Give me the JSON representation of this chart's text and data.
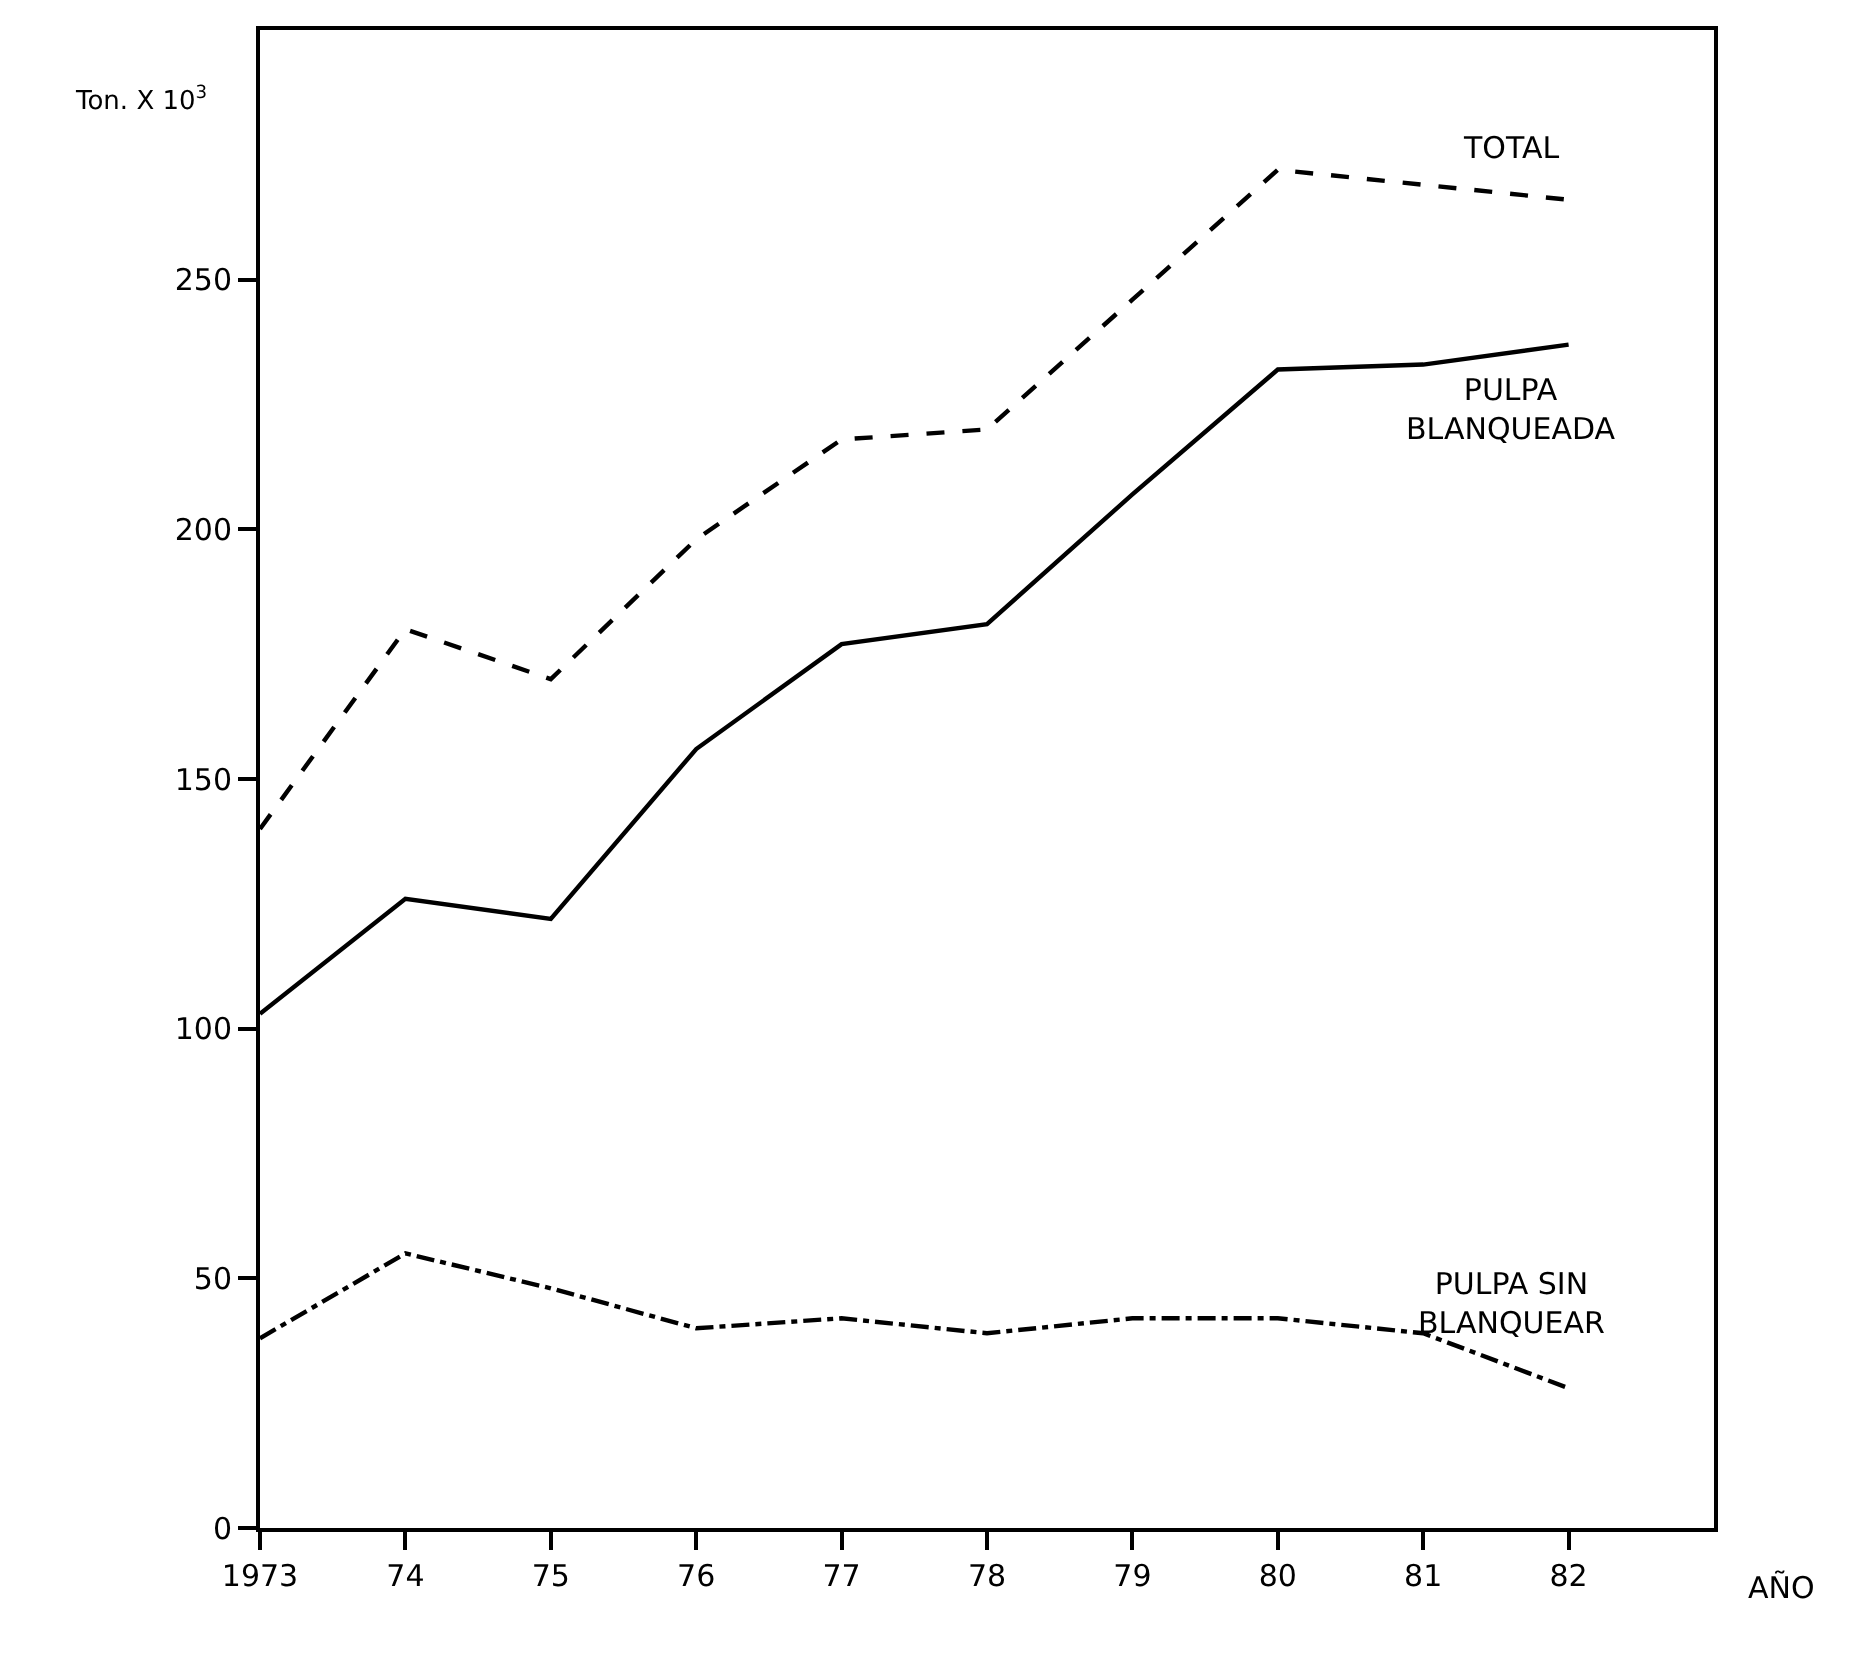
{
  "chart_data": {
    "type": "line",
    "xlabel": "AÑO",
    "ylabel": "Ton. X 10$^{3}$",
    "x": [
      1973,
      1974,
      1975,
      1976,
      1977,
      1978,
      1979,
      1980,
      1981,
      1982
    ],
    "xlim": [
      1973,
      1983
    ],
    "xticks": [
      {
        "value": 1973,
        "label": "1973"
      },
      {
        "value": 1974,
        "label": "74"
      },
      {
        "value": 1975,
        "label": "75"
      },
      {
        "value": 1976,
        "label": "76"
      },
      {
        "value": 1977,
        "label": "77"
      },
      {
        "value": 1978,
        "label": "78"
      },
      {
        "value": 1979,
        "label": "79"
      },
      {
        "value": 1980,
        "label": "80"
      },
      {
        "value": 1981,
        "label": "81"
      },
      {
        "value": 1982,
        "label": "82"
      }
    ],
    "ylim": [
      0,
      300
    ],
    "yticks": [
      0,
      50,
      100,
      150,
      200,
      250
    ],
    "grid": false,
    "legend": false,
    "marker": "none",
    "series": [
      {
        "name": "TOTAL",
        "color": "#000000",
        "line_style": "dashed",
        "values": [
          140,
          180,
          170,
          198,
          218,
          220,
          246,
          272,
          269,
          266
        ]
      },
      {
        "name": "PULPA\nBLANQUEADA",
        "color": "#000000",
        "line_style": "solid",
        "values": [
          103,
          126,
          122,
          156,
          177,
          181,
          207,
          232,
          233,
          237
        ]
      },
      {
        "name": "PULPA SIN\nBLANQUEAR",
        "color": "#000000",
        "line_style": "dashdot",
        "values": [
          38,
          55,
          48,
          40,
          42,
          39,
          42,
          42,
          39,
          28
        ]
      }
    ]
  }
}
